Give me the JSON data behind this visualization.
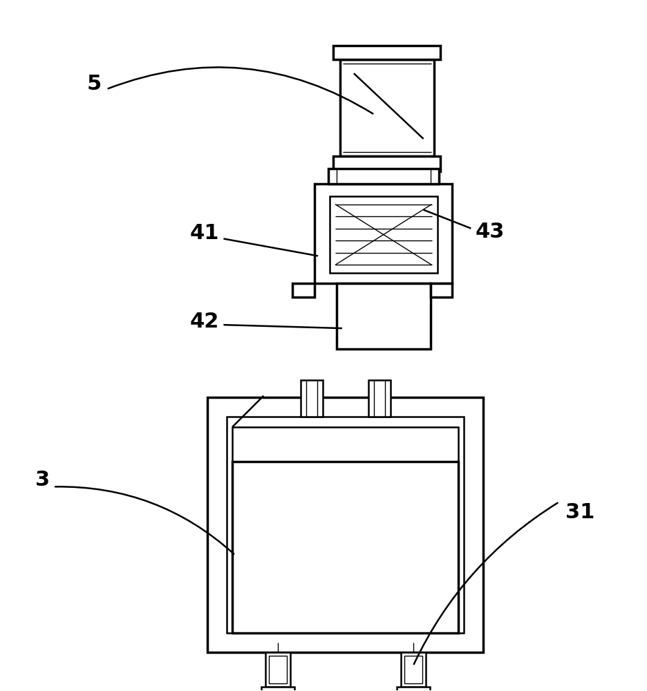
{
  "bg_color": "#ffffff",
  "lc": "#000000",
  "fig_width": 9.37,
  "fig_height": 10.0,
  "dpi": 100
}
